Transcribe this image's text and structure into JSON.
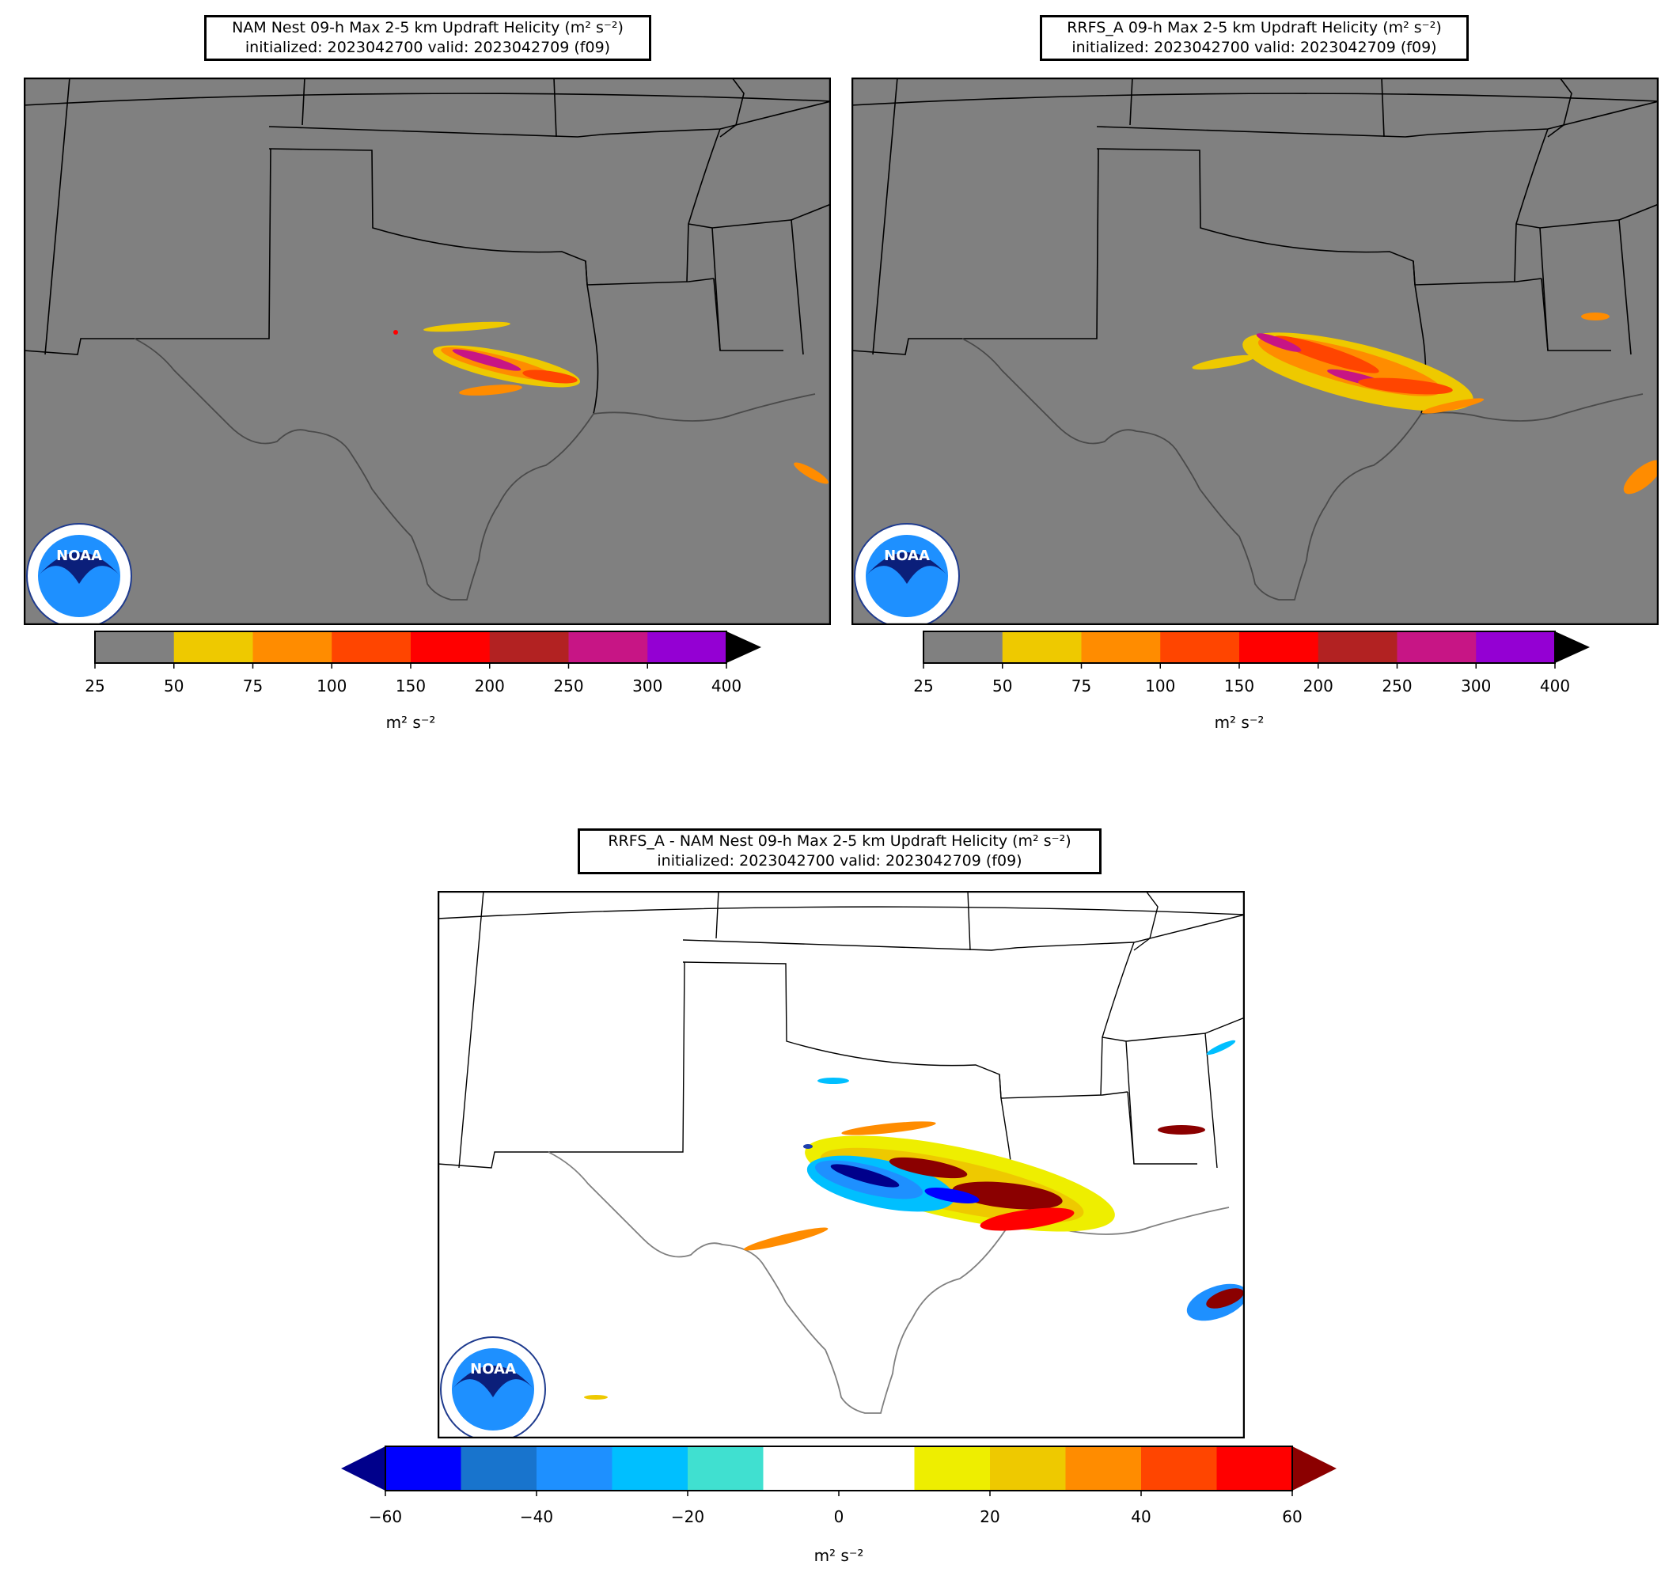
{
  "panels": [
    {
      "id": "nam",
      "title_line1": "NAM Nest 09-h Max 2-5 km Updraft Helicity (m² s⁻²)",
      "title_line2": "initialized: 2023042700 valid: 2023042709 (f09)",
      "background": "#808080",
      "logo_text": "NOAA",
      "colorbar": {
        "ticks": [
          "25",
          "50",
          "75",
          "100",
          "150",
          "200",
          "250",
          "300",
          "400"
        ],
        "colors": [
          "#808080",
          "#eec900",
          "#ff8c00",
          "#ff4500",
          "#ff0000",
          "#b22222",
          "#c71585",
          "#9400d3"
        ],
        "extend": "max",
        "extend_color": "#000000",
        "unit": "m² s⁻²"
      }
    },
    {
      "id": "rrfs",
      "title_line1": "RRFS_A 09-h Max 2-5 km Updraft Helicity (m² s⁻²)",
      "title_line2": "initialized: 2023042700 valid: 2023042709 (f09)",
      "background": "#808080",
      "logo_text": "NOAA",
      "colorbar": {
        "ticks": [
          "25",
          "50",
          "75",
          "100",
          "150",
          "200",
          "250",
          "300",
          "400"
        ],
        "colors": [
          "#808080",
          "#eec900",
          "#ff8c00",
          "#ff4500",
          "#ff0000",
          "#b22222",
          "#c71585",
          "#9400d3"
        ],
        "extend": "max",
        "extend_color": "#000000",
        "unit": "m² s⁻²"
      }
    },
    {
      "id": "diff",
      "title_line1": "RRFS_A - NAM Nest 09-h Max 2-5 km Updraft Helicity (m² s⁻²)",
      "title_line2": "initialized: 2023042700 valid: 2023042709 (f09)",
      "background": "#ffffff",
      "logo_text": "NOAA",
      "colorbar": {
        "ticks": [
          "−60",
          "−40",
          "−20",
          "0",
          "20",
          "40",
          "60"
        ],
        "colors": [
          "#0000ff",
          "#1874cd",
          "#1e90ff",
          "#00bfff",
          "#40e0d0",
          "#ffffff",
          "#ffffff",
          "#eeee00",
          "#eec900",
          "#ff8c00",
          "#ff4500",
          "#ff0000"
        ],
        "extend": "both",
        "extend_low_color": "#00008b",
        "extend_high_color": "#8b0000",
        "unit": "m² s⁻²"
      }
    }
  ]
}
